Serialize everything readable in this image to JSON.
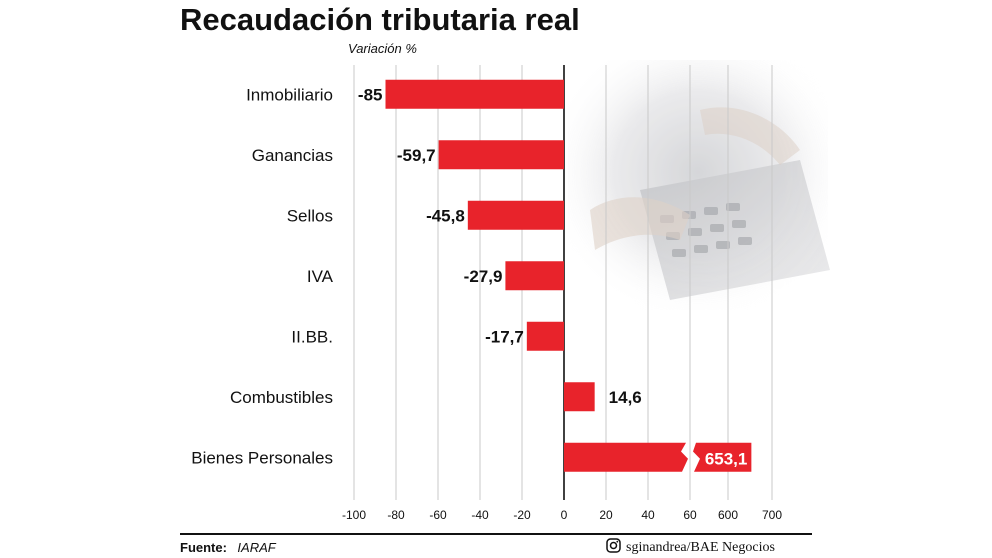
{
  "chart_data": {
    "type": "bar",
    "orientation": "horizontal",
    "title": "Recaudación tributaria real",
    "subtitle": "Variación %",
    "categories": [
      "Inmobiliario",
      "Ganancias",
      "Sellos",
      "IVA",
      "II.BB.",
      "Combustibles",
      "Bienes Personales"
    ],
    "values": [
      -85,
      -59.7,
      -45.8,
      -27.9,
      -17.7,
      14.6,
      653.1
    ],
    "value_labels": [
      "-85",
      "-59,7",
      "-45,8",
      "-27,9",
      "-17,7",
      "14,6",
      "653,1"
    ],
    "x_ticks": [
      "-100",
      "-80",
      "-60",
      "-40",
      "-20",
      "0",
      "20",
      "40",
      "60",
      "600",
      "700"
    ],
    "axis_break": {
      "from": 60,
      "to": 600
    },
    "bar_color": "#e8232b",
    "grid": true,
    "legend": "none"
  },
  "footer": {
    "source_label": "Fuente:",
    "source_value": "IARAF",
    "credit": "sginandrea/BAE Negocios",
    "credit_icon": "instagram-icon"
  }
}
